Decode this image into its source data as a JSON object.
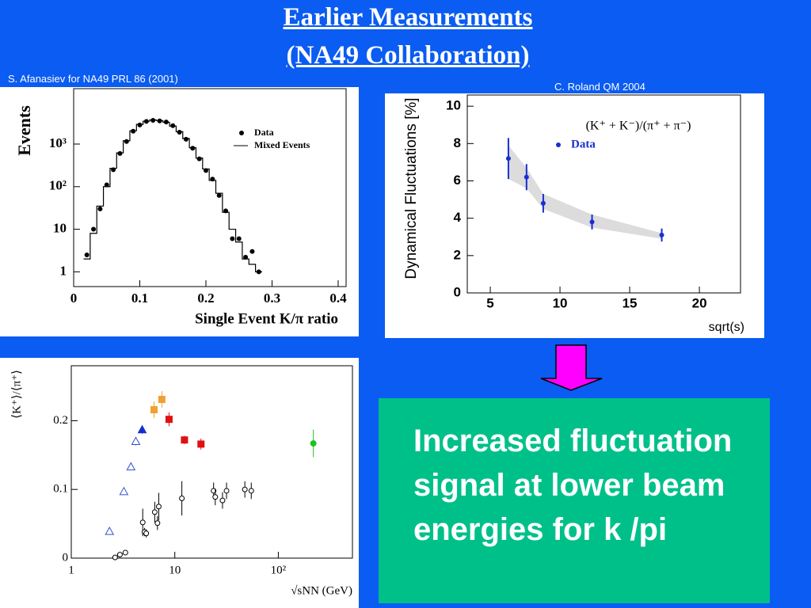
{
  "title": [
    "Earlier Measurements",
    "(NA49 Collaboration)"
  ],
  "credits": [
    "S. Afanasiev for NA49 PRL 86 (2001)",
    "C. Roland QM 2004"
  ],
  "note": "Increased fluctuation signal at lower beam energies for k /pi",
  "chart_data": [
    {
      "type": "scatter",
      "xlabel": "Single Event K/π ratio",
      "ylabel": "Events",
      "log_y": true,
      "legend": "upper right",
      "xlim": [
        0,
        0.412
      ],
      "xticks": [
        0,
        0.1,
        0.2,
        0.3,
        0.4
      ],
      "ylim": [
        0.45,
        20000
      ],
      "yticks": [
        1,
        10,
        {
          "value": 100,
          "label": "10²"
        },
        {
          "value": 1000,
          "label": "10³"
        }
      ],
      "series": [
        {
          "name": "Data",
          "color": "#000000",
          "marker": "dot",
          "x": [
            0.02,
            0.03,
            0.04,
            0.05,
            0.06,
            0.07,
            0.08,
            0.09,
            0.1,
            0.11,
            0.12,
            0.13,
            0.14,
            0.15,
            0.16,
            0.17,
            0.18,
            0.19,
            0.2,
            0.21,
            0.22,
            0.23,
            0.24,
            0.25,
            0.26,
            0.27,
            0.28
          ],
          "values": [
            2.5,
            10,
            30,
            110,
            250,
            600,
            1150,
            2000,
            2800,
            3400,
            3600,
            3500,
            3300,
            2700,
            1900,
            1300,
            800,
            450,
            240,
            150,
            62,
            27,
            6,
            6,
            2.2,
            3,
            1
          ]
        },
        {
          "name": "Mixed Events",
          "color": "#000000",
          "marker": "step",
          "x": [
            0.02,
            0.03,
            0.04,
            0.05,
            0.06,
            0.07,
            0.08,
            0.09,
            0.1,
            0.11,
            0.12,
            0.13,
            0.14,
            0.15,
            0.16,
            0.17,
            0.18,
            0.19,
            0.2,
            0.21,
            0.22,
            0.23,
            0.24,
            0.25,
            0.26,
            0.27,
            0.28
          ],
          "values": [
            2,
            8,
            35,
            100,
            270,
            620,
            1200,
            2050,
            2900,
            3450,
            3700,
            3550,
            3250,
            2650,
            1950,
            1350,
            820,
            470,
            260,
            140,
            70,
            25,
            10,
            5,
            2,
            1.5,
            1
          ]
        }
      ]
    },
    {
      "type": "scatter",
      "xlabel": "sqrt(s)",
      "ylabel": "Dynamical Fluctuations [%]",
      "annotation": "(K⁺ + K⁻)/(π⁺ + π⁻)",
      "legend": "upper right",
      "xlim": [
        3.35,
        22.95
      ],
      "xticks": [
        5,
        10,
        15,
        20
      ],
      "ylim": [
        0,
        10.6
      ],
      "yticks": [
        0,
        2,
        4,
        6,
        8,
        10
      ],
      "band": {
        "color": "#dcdcdc",
        "x": [
          6.3,
          7.6,
          8.8,
          12.3,
          17.3
        ],
        "low": [
          6.1,
          5.6,
          4.5,
          3.5,
          2.9
        ],
        "high": [
          7.9,
          6.7,
          5.3,
          4.2,
          3.2
        ]
      },
      "series": [
        {
          "name": "Data",
          "color": "#1a2fd0",
          "marker": "dot",
          "x": [
            6.3,
            7.6,
            8.8,
            12.3,
            17.3
          ],
          "values": [
            7.2,
            6.2,
            4.8,
            3.8,
            3.1
          ],
          "errors": [
            1.1,
            0.7,
            0.5,
            0.4,
            0.35
          ]
        }
      ]
    },
    {
      "type": "scatter",
      "xlabel": "√sNN (GeV)",
      "ylabel": "⟨K⁺⟩/⟨π⁺⟩",
      "log_x": true,
      "xlim": [
        1,
        520
      ],
      "xticks": [
        1,
        10,
        {
          "value": 100,
          "label": "10²"
        }
      ],
      "ylim": [
        0,
        0.28
      ],
      "yticks": [
        0,
        0.1,
        0.2
      ],
      "series": [
        {
          "color": "#3050d0",
          "marker": "triangle-open",
          "x": [
            2.34,
            3.22,
            3.77,
            4.2
          ],
          "values": [
            0.039,
            0.097,
            0.133,
            0.17
          ],
          "errors": [
            0.002,
            0.002,
            0.005,
            0.006
          ]
        },
        {
          "color": "#1030d0",
          "marker": "triangle",
          "x": [
            4.84
          ],
          "values": [
            0.187
          ],
          "errors": [
            0.006
          ]
        },
        {
          "color": "#f0a030",
          "marker": "square",
          "x": [
            6.3,
            7.5
          ],
          "values": [
            0.216,
            0.231
          ],
          "errors": [
            0.012,
            0.012
          ]
        },
        {
          "color": "#e01010",
          "marker": "square",
          "x": [
            8.8,
            12.4,
            17.9
          ],
          "values": [
            0.202,
            0.172,
            0.166
          ],
          "errors": [
            0.01,
            0.006,
            0.008
          ]
        },
        {
          "color": "#20c020",
          "marker": "circle",
          "x": [
            218
          ],
          "values": [
            0.167
          ],
          "errors": [
            0.02
          ]
        },
        {
          "color": "#000000",
          "marker": "circle-open",
          "x": [
            2.65,
            2.95,
            3.33,
            4.9,
            5.1,
            5.3,
            6.4,
            6.8,
            7.0,
            11.7,
            23.7,
            24.6,
            28.9,
            31.6,
            47.5,
            54.8
          ],
          "values": [
            0.001,
            0.005,
            0.008,
            0.052,
            0.038,
            0.036,
            0.067,
            0.051,
            0.075,
            0.087,
            0.098,
            0.089,
            0.084,
            0.098,
            0.1,
            0.098
          ],
          "errors": [
            0.002,
            0.002,
            0.002,
            0.02,
            0.006,
            0.006,
            0.015,
            0.01,
            0.02,
            0.025,
            0.012,
            0.012,
            0.012,
            0.012,
            0.012,
            0.012
          ]
        }
      ]
    }
  ]
}
